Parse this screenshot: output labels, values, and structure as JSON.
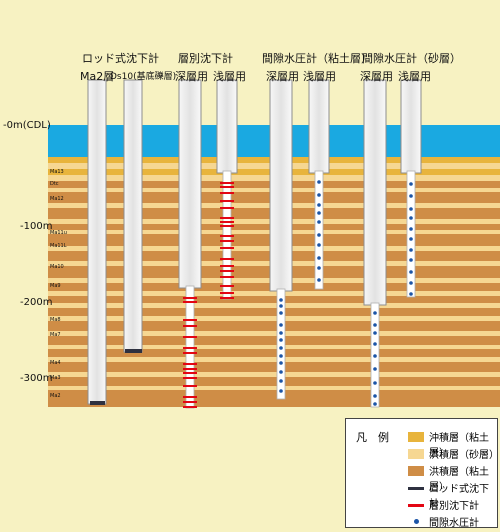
{
  "groups": {
    "rod": "ロッド式沈下計",
    "layer": "層別沈下計",
    "pore_clay": "間隙水圧計（粘土層）",
    "pore_sand": "間隙水圧計（砂層）"
  },
  "subs": {
    "ma2": "Ma2層",
    "ds10": "Ds10(基底礫層)",
    "layer_deep": "深層用",
    "layer_shallow": "浅層用",
    "clay_deep": "深層用",
    "clay_shallow": "浅層用",
    "sand_deep": "深層用",
    "sand_shallow": "浅層用"
  },
  "depths": {
    "d0": "-0m(CDL)",
    "d100": "-100m",
    "d200": "-200m",
    "d300": "-300m"
  },
  "layer_labels": {
    "ma13": "Ma13",
    "dtc": "Dtc",
    "ma12": "Ma12",
    "ma11u": "Ma11u",
    "ma11l": "Ma11L",
    "ma10": "Ma10",
    "ma9": "Ma9",
    "ma8": "Ma8",
    "ma7": "Ma7",
    "ma4": "Ma4",
    "ma3": "Ma3",
    "ma2": "Ma2"
  },
  "legend": {
    "title": "凡　例",
    "items": {
      "alluvial_clay": "沖積層（粘土層）",
      "diluvial_sand": "洪積層（砂層）",
      "diluvial_clay": "洪積層（粘土層）",
      "rod": "ロッド式沈下計",
      "layer": "層別沈下計",
      "pore": "間隙水圧計"
    }
  },
  "colors": {
    "water": "#1aa9e1",
    "alluvial_clay": "#e8b43c",
    "diluvial_sand": "#f6d792",
    "diluvial_clay": "#cf8d46",
    "red_marker": "#e30613",
    "blue_marker": "#1c55a7"
  }
}
